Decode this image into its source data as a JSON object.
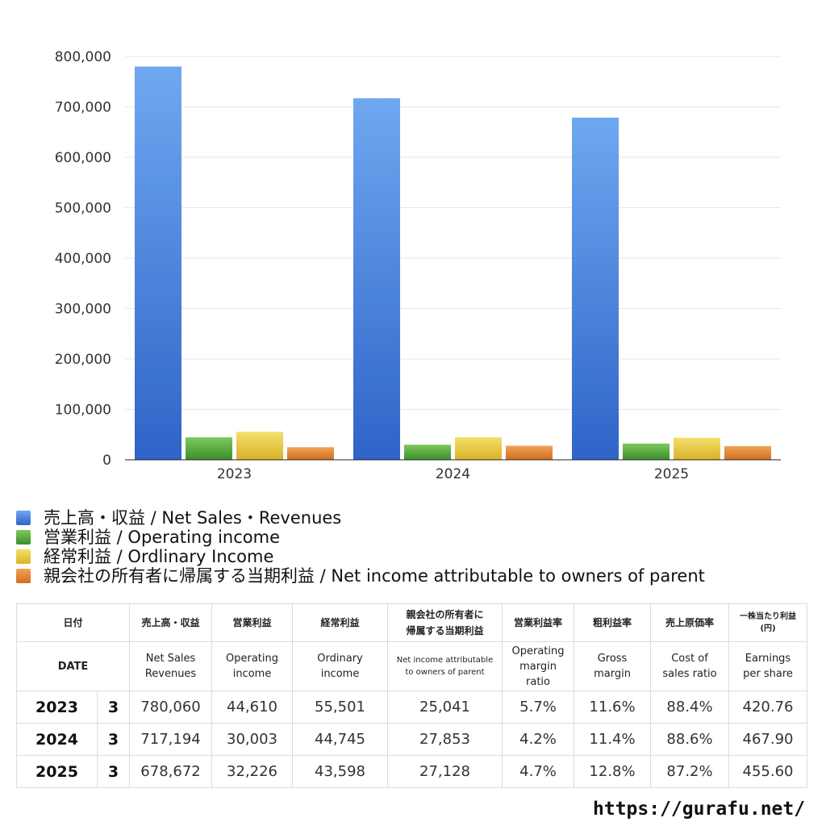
{
  "chart_data": {
    "type": "bar",
    "categories": [
      "2023",
      "2024",
      "2025"
    ],
    "series": [
      {
        "name": "売上高・収益 / Net Sales・Revenues",
        "values": [
          780060,
          717194,
          678672
        ],
        "color": "#3a7fe0"
      },
      {
        "name": "営業利益 / Operating income",
        "values": [
          44610,
          30003,
          32226
        ],
        "color": "#4fa838"
      },
      {
        "name": "経常利益 / Ordlinary Income",
        "values": [
          55501,
          44745,
          43598
        ],
        "color": "#e8cc3a"
      },
      {
        "name": "親会社の所有者に帰属する当期利益 / Net income attributable to owners of parent",
        "values": [
          25041,
          27853,
          27128
        ],
        "color": "#e07f2c"
      }
    ],
    "ylim": [
      0,
      800000
    ],
    "yticks": [
      0,
      100000,
      200000,
      300000,
      400000,
      500000,
      600000,
      700000,
      800000
    ],
    "ytick_labels": [
      "0",
      "100,000",
      "200,000",
      "300,000",
      "400,000",
      "500,000",
      "600,000",
      "700,000",
      "800,000"
    ],
    "grid": true,
    "legend_position": "bottom-left"
  },
  "table": {
    "header_jp": {
      "date": "日付",
      "sales": "売上高・収益",
      "operating": "営業利益",
      "ordinary": "経常利益",
      "net_line1": "親会社の所有者に",
      "net_line2": "帰属する当期利益",
      "op_margin": "営業利益率",
      "gross": "粗利益率",
      "cost": "売上原価率",
      "eps_line1": "一株当たり利益",
      "eps_line2": "(円)"
    },
    "header_en": {
      "date": "DATE",
      "sales_line1": "Net Sales",
      "sales_line2": "Revenues",
      "operating_line1": "Operating",
      "operating_line2": "income",
      "ordinary_line1": "Ordinary",
      "ordinary_line2": "income",
      "net_line1": "Net income attributable",
      "net_line2": "to owners of parent",
      "op_margin_line1": "Operating",
      "op_margin_line2": "margin",
      "op_margin_line3": "ratio",
      "gross_line1": "Gross",
      "gross_line2": "margin",
      "cost_line1": "Cost of",
      "cost_line2": "sales ratio",
      "eps_line1": "Earnings",
      "eps_line2": "per share"
    },
    "rows": [
      {
        "year": "2023",
        "month": "3",
        "sales": "780,060",
        "operating": "44,610",
        "ordinary": "55,501",
        "net": "25,041",
        "op_margin": "5.7%",
        "gross": "11.6%",
        "cost": "88.4%",
        "eps": "420.76"
      },
      {
        "year": "2024",
        "month": "3",
        "sales": "717,194",
        "operating": "30,003",
        "ordinary": "44,745",
        "net": "27,853",
        "op_margin": "4.2%",
        "gross": "11.4%",
        "cost": "88.6%",
        "eps": "467.90"
      },
      {
        "year": "2025",
        "month": "3",
        "sales": "678,672",
        "operating": "32,226",
        "ordinary": "43,598",
        "net": "27,128",
        "op_margin": "4.7%",
        "gross": "12.8%",
        "cost": "87.2%",
        "eps": "455.60"
      }
    ]
  },
  "source_url": "https://gurafu.net/"
}
